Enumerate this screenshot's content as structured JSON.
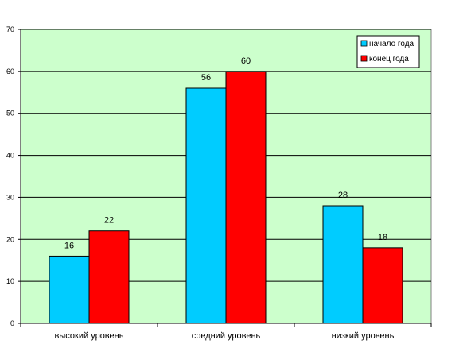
{
  "chart_data": {
    "type": "bar",
    "categories": [
      "высокий уровень",
      "средний уровень",
      "низкий уровень"
    ],
    "series": [
      {
        "name": "начало года",
        "values": [
          16,
          56,
          28
        ],
        "color": "#00ccff"
      },
      {
        "name": "конец года",
        "values": [
          22,
          60,
          18
        ],
        "color": "#ff0000"
      }
    ],
    "yticks": [
      "0",
      "10",
      "20",
      "30",
      "40",
      "50",
      "60",
      "70"
    ],
    "ylim": [
      0,
      70
    ],
    "grid": true,
    "legend_position": "top-right",
    "plot_background": "#ccffcc",
    "xlabel": "",
    "ylabel": "",
    "title": ""
  }
}
